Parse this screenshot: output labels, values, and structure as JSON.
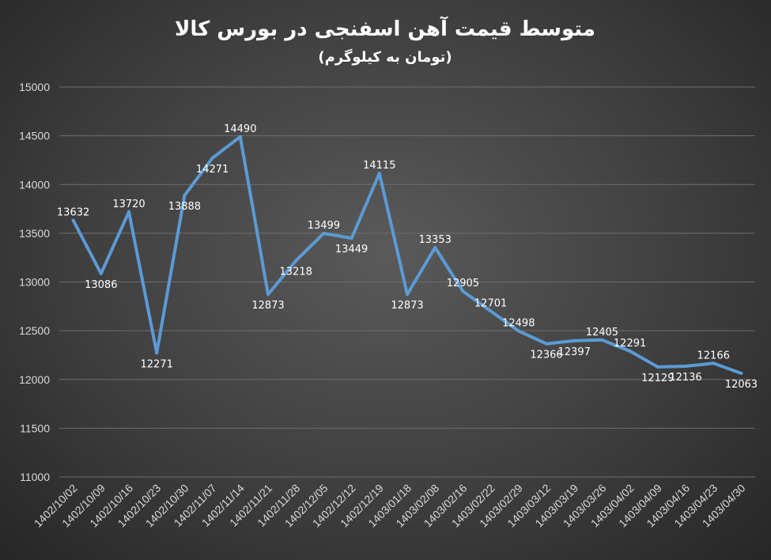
{
  "chart_data": {
    "type": "line",
    "title": "متوسط قیمت آهن اسفنجی در بورس کالا",
    "subtitle": "(تومان به کیلوگرم)",
    "xlabel": "",
    "ylabel": "",
    "ylim": [
      11000,
      15000
    ],
    "yticks": [
      "15000",
      "14500",
      "14000",
      "13500",
      "13000",
      "12500",
      "12000",
      "11500",
      "11000"
    ],
    "grid": true,
    "legend": "none",
    "line_color": "#5b9bd5",
    "categories": [
      "1402/10/02",
      "1402/10/09",
      "1402/10/16",
      "1402/10/23",
      "1402/10/30",
      "1402/11/07",
      "1402/11/14",
      "1402/11/21",
      "1402/11/28",
      "1402/12/05",
      "1402/12/12",
      "1402/12/19",
      "1403/01/18",
      "1403/02/08",
      "1403/02/16",
      "1403/02/22",
      "1403/02/29",
      "1403/03/12",
      "1403/03/19",
      "1403/03/26",
      "1403/04/02",
      "1403/04/09",
      "1403/04/16",
      "1403/04/23",
      "1403/04/30"
    ],
    "values": [
      13632,
      13086,
      13720,
      12271,
      13888,
      14271,
      14490,
      12873,
      13218,
      13499,
      13449,
      14115,
      12873,
      13353,
      12905,
      12701,
      12498,
      12366,
      12397,
      12405,
      12291,
      12129,
      12136,
      12166,
      12063
    ]
  }
}
